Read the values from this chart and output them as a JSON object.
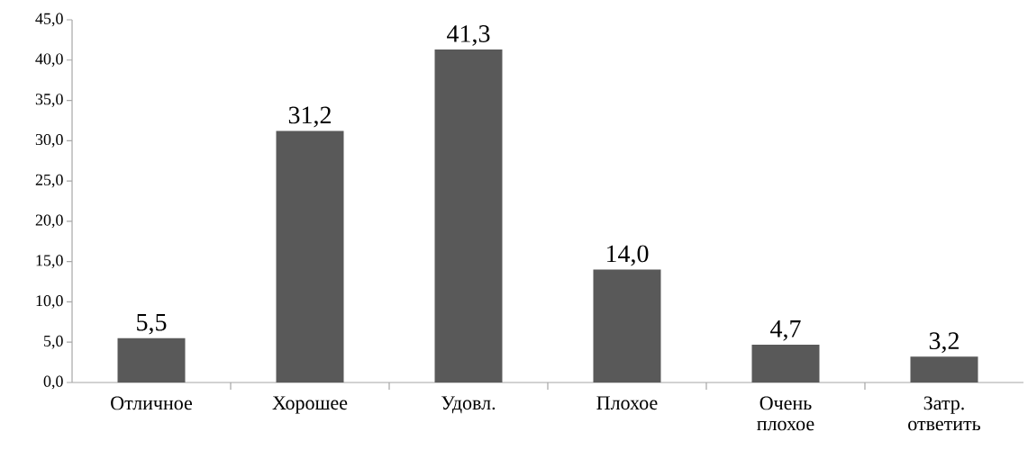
{
  "chart_data": {
    "type": "bar",
    "categories": [
      "Отличное",
      "Хорошее",
      "Удовл.",
      "Плохое",
      "Очень плохое",
      "Затр. ответить"
    ],
    "values": [
      5.5,
      31.2,
      41.3,
      14.0,
      4.7,
      3.2
    ],
    "value_labels": [
      "5,5",
      "31,2",
      "41,3",
      "14,0",
      "4,7",
      "3,2"
    ],
    "color": "#595959",
    "ylim": [
      0,
      45
    ],
    "yticks": [
      {
        "value": 0,
        "label": "0,0"
      },
      {
        "value": 5,
        "label": "5,0"
      },
      {
        "value": 10,
        "label": "10,0"
      },
      {
        "value": 15,
        "label": "15,0"
      },
      {
        "value": 20,
        "label": "20,0"
      },
      {
        "value": 25,
        "label": "25,0"
      },
      {
        "value": 30,
        "label": "30,0"
      },
      {
        "value": 35,
        "label": "35,0"
      },
      {
        "value": 40,
        "label": "40,0"
      },
      {
        "value": 45,
        "label": "45,0"
      }
    ]
  }
}
